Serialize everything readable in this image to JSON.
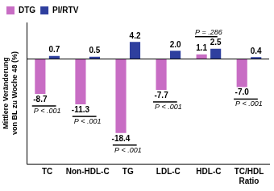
{
  "chart_data": {
    "type": "bar",
    "y_label": "Mittlere Veränderung von BL zu Woche 48 (%)",
    "categories": [
      "TC",
      "Non-HDL-C",
      "TG",
      "LDL-C",
      "HDL-C",
      "TC/HDL Ratio"
    ],
    "series": [
      {
        "name": "DTG",
        "color": "#c86dc4",
        "values": [
          -8.7,
          -11.3,
          -18.4,
          -7.7,
          1.1,
          -7.0
        ],
        "value_labels": [
          "-8.7",
          "-11.3",
          "-18.4",
          "-7.7",
          "1.1",
          "-7.0"
        ]
      },
      {
        "name": "PI/RTV",
        "color": "#2e3f9e",
        "values": [
          0.7,
          0.5,
          4.2,
          2.0,
          2.5,
          0.4
        ],
        "value_labels": [
          "0.7",
          "0.5",
          "4.2",
          "2.0",
          "2.5",
          "0.4"
        ]
      }
    ],
    "annotations": [
      {
        "category": "TC",
        "text": "P < .001"
      },
      {
        "category": "Non-HDL-C",
        "text": "P < .001"
      },
      {
        "category": "TG",
        "text": "P < .001"
      },
      {
        "category": "LDL-C",
        "text": "P < .001"
      },
      {
        "category": "HDL-C",
        "text": "P = .286"
      },
      {
        "category": "TC/HDL Ratio",
        "text": "P < .001"
      }
    ],
    "ylim": [
      -26,
      9
    ],
    "grid": false,
    "legend": "top-left",
    "data_labels": true,
    "tick_labels": "x"
  }
}
